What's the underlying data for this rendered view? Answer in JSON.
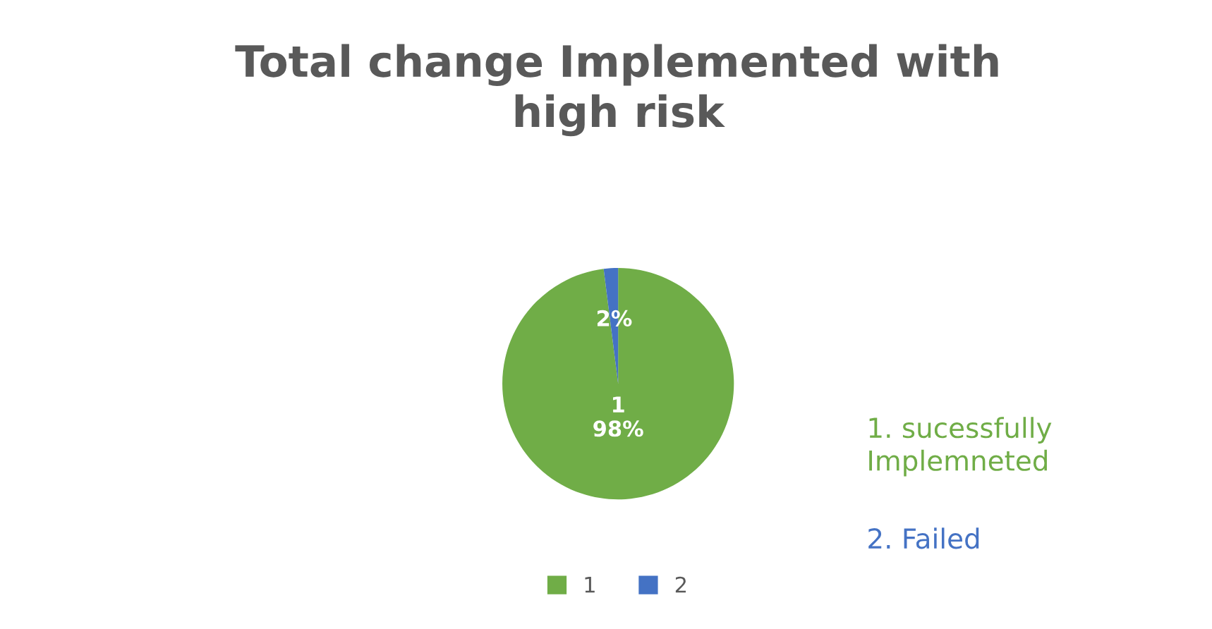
{
  "chart_data": {
    "type": "pie",
    "title": "Total change Implemented with\nhigh risk",
    "categories": [
      "1",
      "2"
    ],
    "values": [
      98,
      2
    ],
    "colors": [
      "#70ad47",
      "#4472c4"
    ],
    "value_labels": [
      "1\n98%",
      "2%"
    ],
    "legend": "bottom",
    "annotations": [
      "1. sucessfully\nImplemneted",
      "2. Failed"
    ]
  }
}
